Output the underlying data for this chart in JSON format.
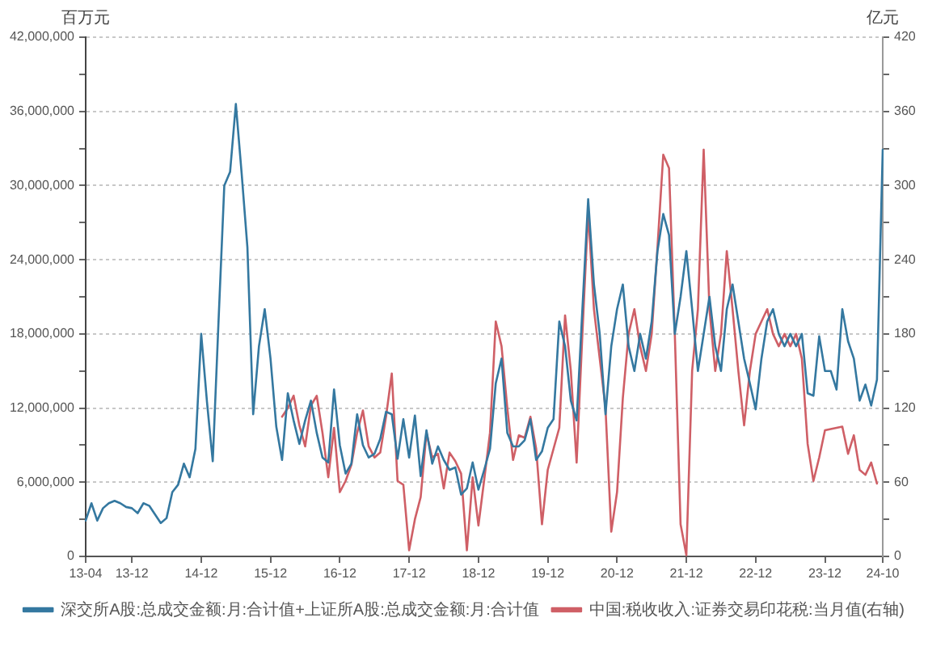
{
  "chart_data": {
    "type": "line",
    "ylabel": "百万元",
    "y2label": "亿元",
    "categories": [
      "13-04",
      null,
      null,
      null,
      null,
      null,
      null,
      null,
      "13-12",
      null,
      null,
      null,
      null,
      null,
      null,
      null,
      null,
      null,
      null,
      null,
      "14-12",
      null,
      null,
      null,
      null,
      null,
      null,
      null,
      null,
      null,
      null,
      null,
      "15-12",
      null,
      null,
      null,
      null,
      null,
      null,
      null,
      null,
      null,
      null,
      null,
      "16-12",
      null,
      null,
      null,
      null,
      null,
      null,
      null,
      null,
      null,
      null,
      null,
      "17-12",
      null,
      null,
      null,
      null,
      null,
      null,
      null,
      null,
      null,
      null,
      null,
      "18-12",
      null,
      null,
      null,
      null,
      null,
      null,
      null,
      null,
      null,
      null,
      null,
      "19-12",
      null,
      null,
      null,
      null,
      null,
      null,
      null,
      null,
      null,
      null,
      null,
      "20-12",
      null,
      null,
      null,
      null,
      null,
      null,
      null,
      null,
      null,
      null,
      null,
      "21-12",
      null,
      null,
      null,
      null,
      null,
      null,
      null,
      null,
      null,
      null,
      null,
      "22-12",
      null,
      null,
      null,
      null,
      null,
      null,
      null,
      null,
      null,
      null,
      null,
      "23-12",
      null,
      null,
      null,
      null,
      null,
      null,
      null,
      null,
      null,
      "24-10"
    ],
    "series": [
      {
        "name": "深交所A股:总成交金额:月:合计值+上证所A股:总成交金额:月:合计值",
        "color": "#3478a0",
        "values": [
          2900000,
          4300000,
          2900000,
          3900000,
          4300000,
          4500000,
          4300000,
          4000000,
          3900000,
          3500000,
          4300000,
          4100000,
          3400000,
          2700000,
          3100000,
          5200000,
          5800000,
          7500000,
          6400000,
          8700000,
          18000000,
          12500000,
          7700000,
          19000000,
          30000000,
          31100000,
          36600000,
          31000000,
          25000000,
          11500000,
          17000000,
          20000000,
          16000000,
          10500000,
          7800000,
          13200000,
          11000000,
          9100000,
          11000000,
          12600000,
          10000000,
          8000000,
          7600000,
          13500000,
          9000000,
          6700000,
          7500000,
          11500000,
          9000000,
          8000000,
          8300000,
          9500000,
          11700000,
          11500000,
          7900000,
          11100000,
          8000000,
          11400000,
          6500000,
          10200000,
          7500000,
          8900000,
          7800000,
          7000000,
          7200000,
          5000000,
          5500000,
          7600000,
          5400000,
          7000000,
          8700000,
          14000000,
          16000000,
          10000000,
          8900000,
          8900000,
          9400000,
          11100000,
          7800000,
          8500000,
          10400000,
          11100000,
          19000000,
          17000000,
          12600000,
          11000000,
          20000000,
          28900000,
          22000000,
          18000000,
          11500000,
          17000000,
          20000000,
          22000000,
          17000000,
          15000000,
          18000000,
          16000000,
          19000000,
          24700000,
          27700000,
          26000000,
          18000000,
          21000000,
          24700000,
          20000000,
          15000000,
          18000000,
          21000000,
          17000000,
          15000000,
          20000000,
          22000000,
          19000000,
          16000000,
          14000000,
          11900000,
          16000000,
          19000000,
          20000000,
          18000000,
          17000000,
          18000000,
          17000000,
          18000000,
          13200000,
          13000000,
          17800000,
          15000000,
          15000000,
          13500000,
          20000000,
          17400000,
          16000000,
          12600000,
          13900000,
          12200000,
          14300000,
          32900000
        ]
      },
      {
        "name": "中国:税收收入:证券交易印花税:当月值(右轴)",
        "color": "#cf5f66",
        "axis": "y2",
        "values": [
          null,
          null,
          null,
          null,
          null,
          null,
          null,
          null,
          null,
          null,
          null,
          null,
          null,
          null,
          null,
          null,
          null,
          null,
          null,
          null,
          null,
          null,
          null,
          null,
          null,
          null,
          null,
          null,
          null,
          null,
          null,
          null,
          null,
          null,
          113,
          120,
          130,
          106,
          89,
          122,
          130,
          100,
          64,
          104,
          52,
          61,
          74,
          100,
          118,
          89,
          80,
          84,
          113,
          148,
          61,
          58,
          5,
          30,
          48,
          100,
          80,
          83,
          55,
          84,
          77,
          67,
          5,
          64,
          25,
          62,
          100,
          190,
          170,
          120,
          78,
          98,
          96,
          113,
          87,
          26,
          70,
          87,
          104,
          195,
          150,
          76,
          180,
          279,
          200,
          160,
          120,
          20,
          52,
          128,
          180,
          200,
          170,
          150,
          180,
          250,
          325,
          314,
          180,
          26,
          1,
          150,
          200,
          329,
          200,
          150,
          180,
          247,
          200,
          150,
          106,
          150,
          180,
          190,
          200,
          180,
          170,
          180,
          170,
          180,
          160,
          91,
          61,
          80,
          102,
          103,
          104,
          105,
          83,
          98,
          70,
          66,
          76,
          59,
          null
        ]
      }
    ],
    "ylim": [
      0,
      42000000
    ],
    "yticks": [
      0,
      {
        "value": 3000000,
        "label": null
      },
      {
        "value": 6000000,
        "label": "6,000,000"
      },
      {
        "value": 9000000,
        "label": null
      },
      {
        "value": 12000000,
        "label": "12,000,000"
      },
      {
        "value": 15000000,
        "label": null
      },
      {
        "value": 18000000,
        "label": "18,000,000"
      },
      {
        "value": 21000000,
        "label": null
      },
      {
        "value": 24000000,
        "label": "24,000,000"
      },
      {
        "value": 27000000,
        "label": null
      },
      {
        "value": 30000000,
        "label": "30,000,000"
      },
      {
        "value": 33000000,
        "label": null
      },
      {
        "value": 36000000,
        "label": "36,000,000"
      },
      {
        "value": 39000000,
        "label": null
      },
      {
        "value": 42000000,
        "label": "42,000,000"
      }
    ],
    "y2lim": [
      0,
      420
    ],
    "y2ticks": [
      0,
      {
        "value": 30,
        "label": null
      },
      60,
      {
        "value": 90,
        "label": null
      },
      120,
      {
        "value": 150,
        "label": null
      },
      180,
      {
        "value": 210,
        "label": null
      },
      240,
      {
        "value": 270,
        "label": null
      },
      300,
      {
        "value": 330,
        "label": null
      },
      360,
      {
        "value": 390,
        "label": null
      },
      420
    ],
    "grid": "y",
    "legend": "bottom"
  }
}
